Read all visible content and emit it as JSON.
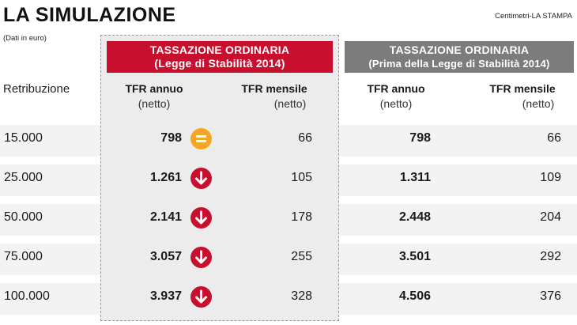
{
  "title": "LA SIMULAZIONE",
  "source": "Centimetri-LA STAMPA",
  "unit_note": "(Dati in euro)",
  "headers": {
    "ordinaria_line1": "TASSAZIONE ORDINARIA",
    "ordinaria_line2": "(Legge di Stabilità 2014)",
    "prima_line1": "TASSAZIONE ORDINARIA",
    "prima_line2": "(Prima della Legge di Stabilità 2014)"
  },
  "columns": {
    "retribuzione": "Retribuzione",
    "tfr_annuo": "TFR annuo",
    "tfr_mensile": "TFR mensile",
    "netto": "(netto)"
  },
  "colors": {
    "red": "#c8102e",
    "orange": "#f5a623",
    "grey": "#7c7c7c"
  },
  "rows": [
    {
      "retribuzione": "15.000",
      "annuo_new": "798",
      "icon": "equal-icon",
      "mensile_new": "66",
      "annuo_old": "798",
      "mensile_old": "66"
    },
    {
      "retribuzione": "25.000",
      "annuo_new": "1.261",
      "icon": "down-arrow-icon",
      "mensile_new": "105",
      "annuo_old": "1.311",
      "mensile_old": "109"
    },
    {
      "retribuzione": "50.000",
      "annuo_new": "2.141",
      "icon": "down-arrow-icon",
      "mensile_new": "178",
      "annuo_old": "2.448",
      "mensile_old": "204"
    },
    {
      "retribuzione": "75.000",
      "annuo_new": "3.057",
      "icon": "down-arrow-icon",
      "mensile_new": "255",
      "annuo_old": "3.501",
      "mensile_old": "292"
    },
    {
      "retribuzione": "100.000",
      "annuo_new": "3.937",
      "icon": "down-arrow-icon",
      "mensile_new": "328",
      "annuo_old": "4.506",
      "mensile_old": "376"
    }
  ]
}
